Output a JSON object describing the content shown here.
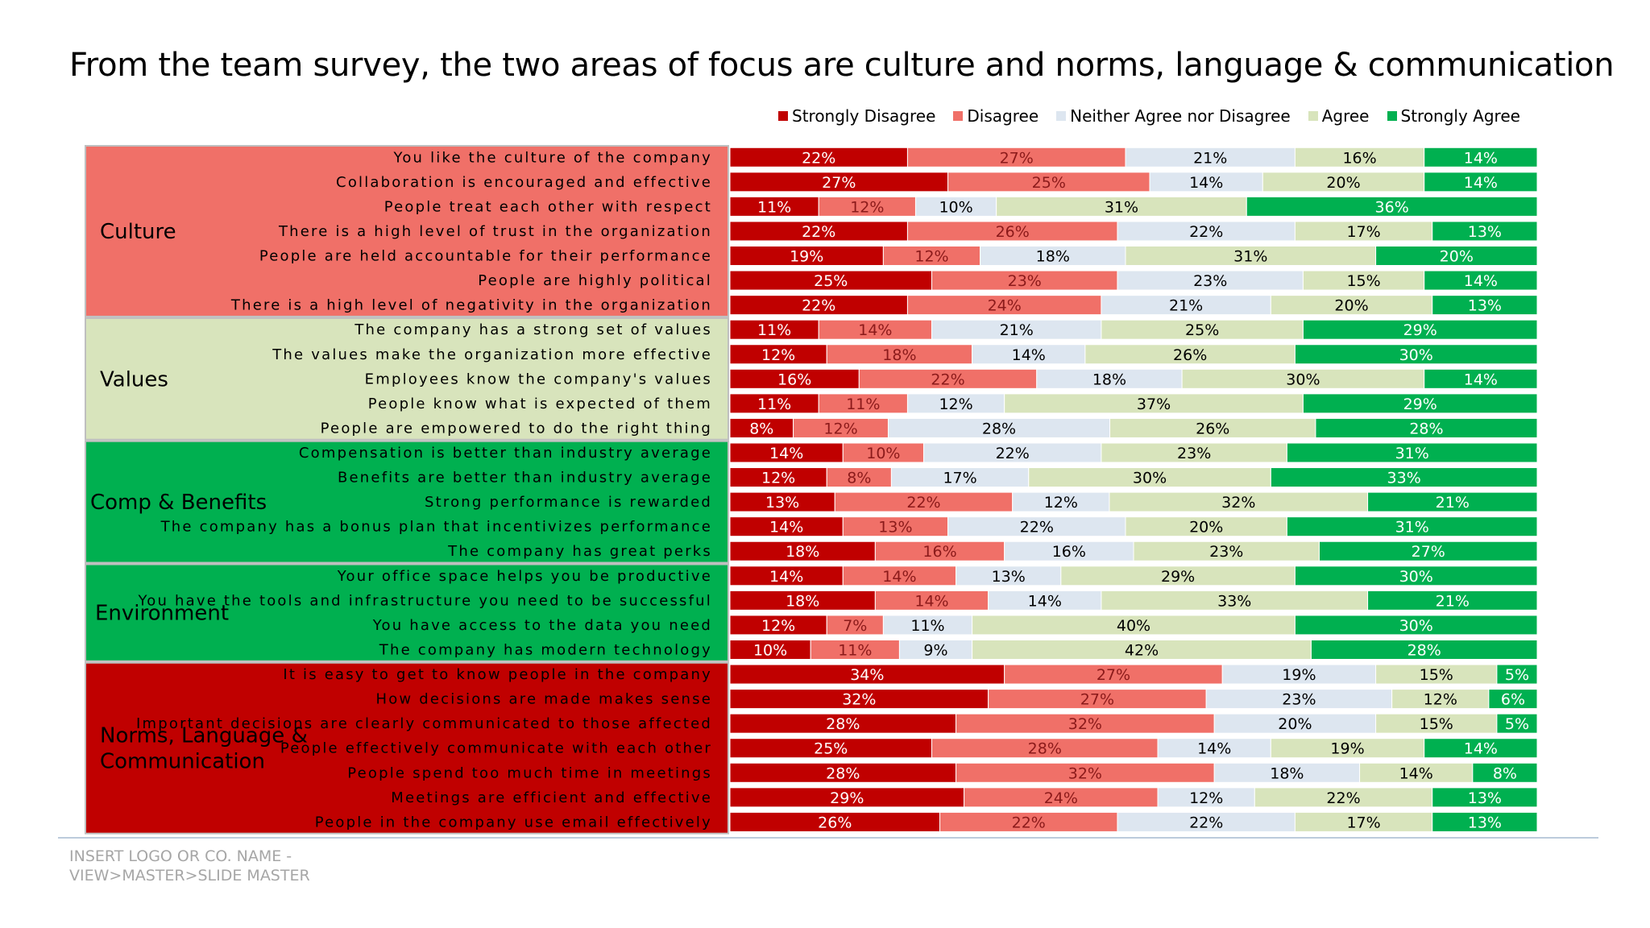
{
  "title": "From the team survey, the two areas of focus are culture and norms, language & communication",
  "footer": {
    "line1": "INSERT LOGO OR CO. NAME -",
    "line2": "VIEW>MASTER>SLIDE MASTER"
  },
  "chart_data": {
    "type": "bar",
    "orientation": "horizontal",
    "stacked": "100%",
    "legend_position": "top",
    "colors": {
      "strongly_disagree": "#c00000",
      "disagree": "#f07068",
      "neither": "#dde6f0",
      "agree": "#d8e4bc",
      "strongly_agree": "#00b050"
    },
    "series_names": [
      "Strongly Disagree",
      "Disagree",
      "Neither Agree nor Disagree",
      "Agree",
      "Strongly Agree"
    ],
    "groups": [
      {
        "name": "Culture",
        "color": "#f07068",
        "text_color": "#000000",
        "items": [
          {
            "label": "You like the culture of the company",
            "values": [
              22,
              27,
              21,
              16,
              14
            ],
            "value_labels": [
              "22%",
              "27%",
              "21%",
              "16%",
              "14%"
            ]
          },
          {
            "label": "Collaboration is encouraged and effective",
            "values": [
              27,
              25,
              14,
              20,
              14
            ],
            "value_labels": [
              "27%",
              "25%",
              "14%",
              "20%",
              "14%"
            ]
          },
          {
            "label": "People treat each other with respect",
            "values": [
              11,
              12,
              10,
              31,
              36
            ],
            "value_labels": [
              "11%",
              "12%",
              "10%",
              "31%",
              "36%"
            ]
          },
          {
            "label": "There is a high level of trust in the organization",
            "values": [
              22,
              26,
              22,
              17,
              13
            ],
            "value_labels": [
              "22%",
              "26%",
              "22%",
              "17%",
              "13%"
            ]
          },
          {
            "label": "People are held accountable for their performance",
            "values": [
              19,
              12,
              18,
              31,
              20
            ],
            "value_labels": [
              "19%",
              "12%",
              "18%",
              "31%",
              "20%"
            ]
          },
          {
            "label": "People are highly political",
            "values": [
              25,
              23,
              23,
              15,
              14
            ],
            "value_labels": [
              "25%",
              "23%",
              "23%",
              "15%",
              "14%"
            ]
          },
          {
            "label": "There is a high level of negativity in the organization",
            "values": [
              22,
              24,
              21,
              20,
              13
            ],
            "value_labels": [
              "22%",
              "24%",
              "21%",
              "20%",
              "13%"
            ]
          }
        ]
      },
      {
        "name": "Values",
        "color": "#d8e4bc",
        "text_color": "#000000",
        "items": [
          {
            "label": "The company has a strong set of values",
            "values": [
              11,
              14,
              21,
              25,
              29
            ],
            "value_labels": [
              "11%",
              "14%",
              "21%",
              "25%",
              "29%"
            ]
          },
          {
            "label": "The values make the organization more effective",
            "values": [
              12,
              18,
              14,
              26,
              30
            ],
            "value_labels": [
              "12%",
              "18%",
              "14%",
              "26%",
              "30%"
            ]
          },
          {
            "label": "Employees know the company's values",
            "values": [
              16,
              22,
              18,
              30,
              14
            ],
            "value_labels": [
              "16%",
              "22%",
              "18%",
              "30%",
              "14%"
            ]
          },
          {
            "label": "People know what is expected of them",
            "values": [
              11,
              11,
              12,
              37,
              29
            ],
            "value_labels": [
              "11%",
              "11%",
              "12%",
              "37%",
              "29%"
            ]
          },
          {
            "label": "People are empowered to do the right thing",
            "values": [
              8,
              12,
              28,
              26,
              28
            ],
            "value_labels": [
              "8%",
              "12%",
              "28%",
              "26%",
              "28%"
            ]
          }
        ]
      },
      {
        "name": "Comp & Benefits",
        "color": "#00b050",
        "text_color": "#000000",
        "items": [
          {
            "label": "Compensation is better than industry average",
            "values": [
              14,
              10,
              22,
              23,
              31
            ],
            "value_labels": [
              "14%",
              "10%",
              "22%",
              "23%",
              "31%"
            ]
          },
          {
            "label": "Benefits are better than industry average",
            "values": [
              12,
              8,
              17,
              30,
              33
            ],
            "value_labels": [
              "12%",
              "8%",
              "17%",
              "30%",
              "33%"
            ]
          },
          {
            "label": "Strong performance is rewarded",
            "values": [
              13,
              22,
              12,
              32,
              21
            ],
            "value_labels": [
              "13%",
              "22%",
              "12%",
              "32%",
              "21%"
            ]
          },
          {
            "label": "The company has a bonus plan that incentivizes performance",
            "values": [
              14,
              13,
              22,
              20,
              31
            ],
            "value_labels": [
              "14%",
              "13%",
              "22%",
              "20%",
              "31%"
            ]
          },
          {
            "label": "The company has great perks",
            "values": [
              18,
              16,
              16,
              23,
              27
            ],
            "value_labels": [
              "18%",
              "16%",
              "16%",
              "23%",
              "27%"
            ]
          }
        ]
      },
      {
        "name": "Environment",
        "color": "#00b050",
        "text_color": "#000000",
        "items": [
          {
            "label": "Your office space helps you be productive",
            "values": [
              14,
              14,
              13,
              29,
              30
            ],
            "value_labels": [
              "14%",
              "14%",
              "13%",
              "29%",
              "30%"
            ]
          },
          {
            "label": "You have the tools and infrastructure you need to be successful",
            "values": [
              18,
              14,
              14,
              33,
              21
            ],
            "value_labels": [
              "18%",
              "14%",
              "14%",
              "33%",
              "21%"
            ]
          },
          {
            "label": "You have access to the data you need",
            "values": [
              12,
              7,
              11,
              40,
              30
            ],
            "value_labels": [
              "12%",
              "7%",
              "11%",
              "40%",
              "30%"
            ]
          },
          {
            "label": "The company has modern technology",
            "values": [
              10,
              11,
              9,
              42,
              28
            ],
            "value_labels": [
              "10%",
              "11%",
              "9%",
              "42%",
              "28%"
            ]
          }
        ]
      },
      {
        "name": "Norms, Language & Communication",
        "name_lines": [
          "Norms, Language &",
          "Communication"
        ],
        "color": "#c00000",
        "text_color": "#000000",
        "items": [
          {
            "label": "It is easy to get to know people in the company",
            "values": [
              34,
              27,
              19,
              15,
              5
            ],
            "value_labels": [
              "34%",
              "27%",
              "19%",
              "15%",
              "5%"
            ]
          },
          {
            "label": "How decisions are made makes sense",
            "values": [
              32,
              27,
              23,
              12,
              6
            ],
            "value_labels": [
              "32%",
              "27%",
              "23%",
              "12%",
              "6%"
            ]
          },
          {
            "label": "Important decisions are clearly communicated to those affected",
            "values": [
              28,
              32,
              20,
              15,
              5
            ],
            "value_labels": [
              "28%",
              "32%",
              "20%",
              "15%",
              "5%"
            ]
          },
          {
            "label": "People effectively communicate with each other",
            "values": [
              25,
              28,
              14,
              19,
              14
            ],
            "value_labels": [
              "25%",
              "28%",
              "14%",
              "19%",
              "14%"
            ]
          },
          {
            "label": "People spend too much time in meetings",
            "values": [
              28,
              32,
              18,
              14,
              8
            ],
            "value_labels": [
              "28%",
              "32%",
              "18%",
              "14%",
              "8%"
            ]
          },
          {
            "label": "Meetings are efficient and effective",
            "values": [
              29,
              24,
              12,
              22,
              13
            ],
            "value_labels": [
              "29%",
              "24%",
              "12%",
              "22%",
              "13%"
            ]
          },
          {
            "label": "People in the company use email effectively",
            "values": [
              26,
              22,
              22,
              17,
              13
            ],
            "value_labels": [
              "26%",
              "22%",
              "22%",
              "17%",
              "13%"
            ]
          }
        ]
      }
    ]
  }
}
